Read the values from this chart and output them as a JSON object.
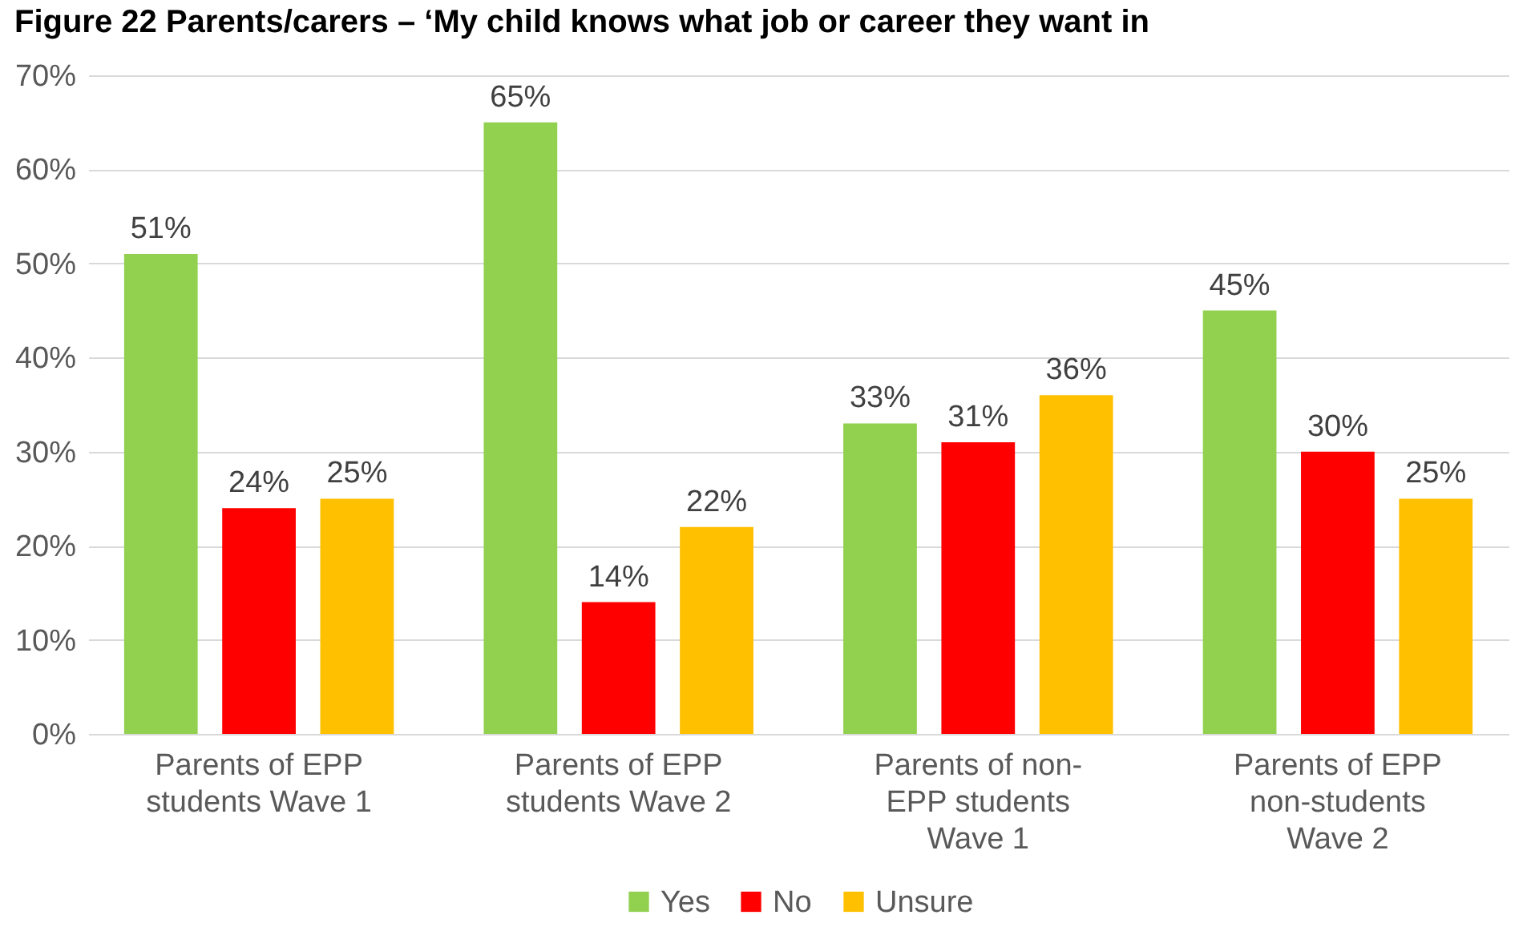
{
  "chart_data": {
    "type": "bar",
    "title": "Figure 22 Parents/carers – ‘My child knows what job or career they want in",
    "categories": [
      "Parents of EPP students Wave 1",
      "Parents of EPP students Wave 2",
      "Parents of non-EPP students Wave 1",
      "Parents of EPP non-students Wave 2"
    ],
    "series": [
      {
        "name": "Yes",
        "color": "#92d050",
        "values": [
          51,
          65,
          33,
          45
        ],
        "value_labels": [
          "51%",
          "65%",
          "33%",
          "45%"
        ]
      },
      {
        "name": "No",
        "color": "#ff0000",
        "values": [
          24,
          14,
          31,
          30
        ],
        "value_labels": [
          "24%",
          "14%",
          "31%",
          "30%"
        ]
      },
      {
        "name": "Unsure",
        "color": "#ffc000",
        "values": [
          25,
          22,
          36,
          25
        ],
        "value_labels": [
          "25%",
          "22%",
          "36%",
          "25%"
        ]
      }
    ],
    "ylim": [
      0,
      70
    ],
    "yticks": [
      {
        "value": 0,
        "label": "0%"
      },
      {
        "value": 10,
        "label": "10%"
      },
      {
        "value": 20,
        "label": "20%"
      },
      {
        "value": 30,
        "label": "30%"
      },
      {
        "value": 40,
        "label": "40%"
      },
      {
        "value": 50,
        "label": "50%"
      },
      {
        "value": 60,
        "label": "60%"
      },
      {
        "value": 70,
        "label": "70%"
      }
    ],
    "grid": "y",
    "legend": "bottom"
  }
}
